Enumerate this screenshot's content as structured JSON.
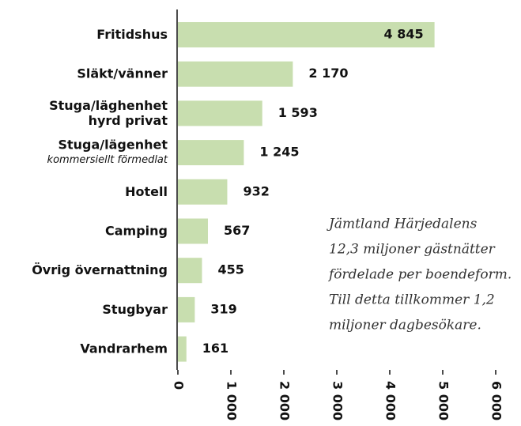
{
  "chart_data": {
    "type": "barh",
    "categories": [
      "Fritidshus",
      "Släkt/vänner",
      "Stuga/läghenhet\nhyrd privat",
      "Stuga/lägenhet",
      "Hotell",
      "Camping",
      "Övrig övernattning",
      "Stugbyar",
      "Vandrarhem"
    ],
    "category_sublabels": [
      null,
      null,
      null,
      "kommersiellt förmedlat",
      null,
      null,
      null,
      null,
      null
    ],
    "values": [
      4845,
      2170,
      1593,
      1245,
      932,
      567,
      455,
      319,
      161
    ],
    "value_labels": [
      "4 845",
      "2 170",
      "1 593",
      "1 245",
      "932",
      "567",
      "455",
      "319",
      "161"
    ],
    "color": "#c8deaf",
    "xlim": [
      0,
      6000
    ],
    "xticks": [
      0,
      {
        "value": 1000,
        "label": "1 000"
      },
      {
        "value": 2000,
        "label": "2 000"
      },
      {
        "value": 3000,
        "label": "3 000"
      },
      {
        "value": 4000,
        "label": "4 000"
      },
      {
        "value": 5000,
        "label": "5 000"
      },
      {
        "value": 6000,
        "label": "6 000"
      }
    ],
    "annotation": [
      "Jämtland Härjedalens",
      "12,3 miljoner gästnätter",
      "fördelade per boendeform.",
      "Till detta tillkommer 1,2",
      "miljoner dagbesökare."
    ]
  }
}
